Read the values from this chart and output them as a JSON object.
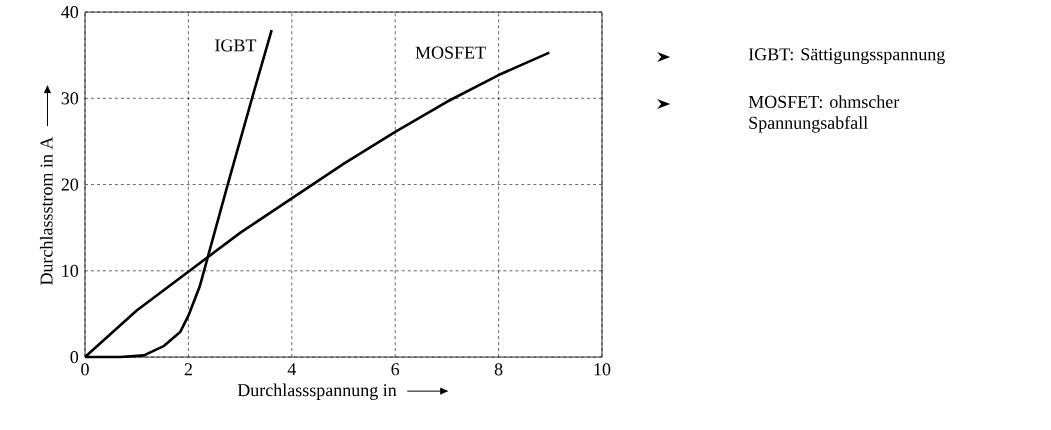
{
  "chart_data": {
    "type": "line",
    "xlabel": "Durchlassspannung in",
    "ylabel": "Durchlassstrom in A",
    "xlim": [
      0,
      10
    ],
    "ylim": [
      0,
      40
    ],
    "xticks": [
      0,
      2,
      4,
      6,
      8,
      10
    ],
    "yticks": [
      0,
      10,
      20,
      30,
      40
    ],
    "grid": true,
    "legend": false,
    "marker": "none",
    "line_style": "solid",
    "series": [
      {
        "name": "IGBT",
        "color": "#000000",
        "x": [
          0,
          0.68,
          1.14,
          1.53,
          1.84,
          2,
          2.22,
          2.38,
          2.76,
          3.23,
          3.61
        ],
        "values": [
          0,
          0,
          0.2,
          1.3,
          2.9,
          4.8,
          8.2,
          11.7,
          20,
          30,
          37.9
        ]
      },
      {
        "name": "MOSFET",
        "color": "#000000",
        "x": [
          0,
          1,
          2,
          3,
          4,
          5,
          6,
          7,
          8,
          8.98
        ],
        "values": [
          0,
          5.4,
          9.9,
          14.4,
          18.4,
          22.4,
          26.1,
          29.6,
          32.7,
          35.3
        ]
      }
    ],
    "annotations": [
      "IGBT: Sättigungsspannung",
      "MOSFET: ohmscher Spannungsabfall"
    ]
  }
}
